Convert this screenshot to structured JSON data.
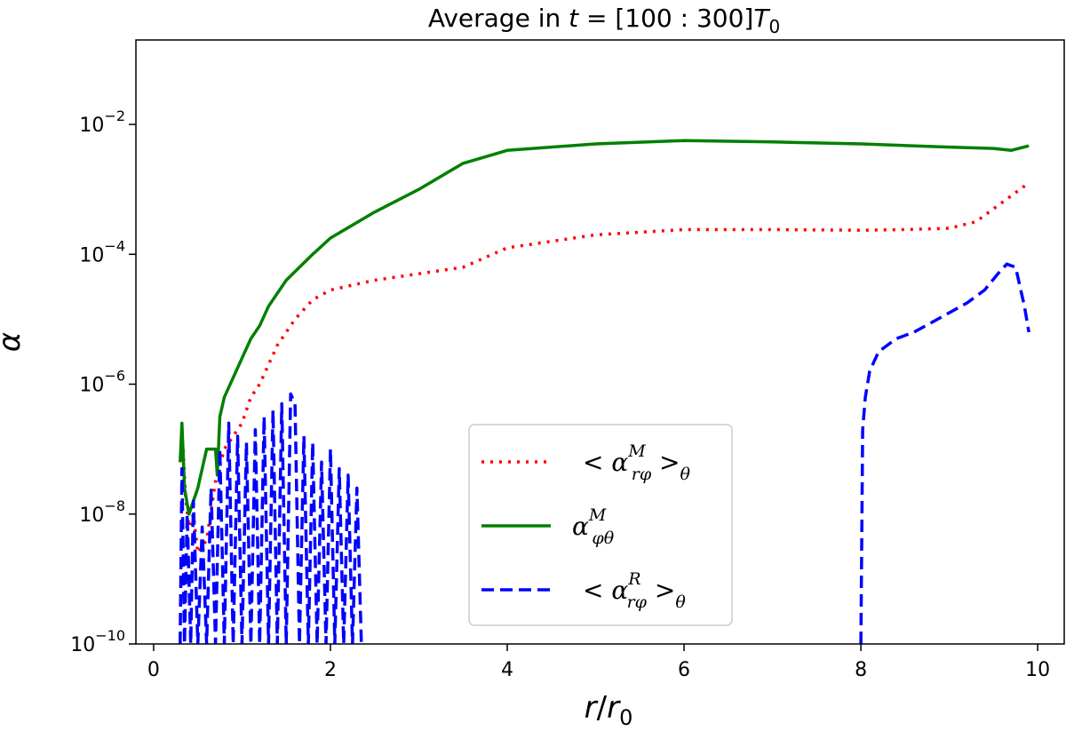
{
  "chart_data": {
    "type": "line",
    "title": "Average in t = [100 : 300]T₀",
    "title_parts": {
      "prefix": "Average in ",
      "var": "t",
      "eq": " = [100 : 300]",
      "T": "T",
      "sub": "0"
    },
    "xlabel": "r/r₀",
    "xlabel_parts": {
      "num": "r",
      "slash": "/",
      "den": "r",
      "sub": "0"
    },
    "ylabel": "α",
    "xlim": [
      -0.2,
      10.3
    ],
    "ylim_log10": [
      -10,
      -0.71
    ],
    "ylim_exponents": [
      -10,
      -0.7
    ],
    "y_scale": "log",
    "x_ticks": [
      0,
      2,
      4,
      6,
      8,
      10
    ],
    "x_tick_labels": [
      "0",
      "2",
      "4",
      "6",
      "8",
      "10"
    ],
    "y_ticks_exp": [
      -10,
      -8,
      -6,
      -4,
      -2
    ],
    "y_tick_labels": [
      {
        "base": "10",
        "exp": "−10"
      },
      {
        "base": "10",
        "exp": "−8"
      },
      {
        "base": "10",
        "exp": "−6"
      },
      {
        "base": "10",
        "exp": "−4"
      },
      {
        "base": "10",
        "exp": "−2"
      }
    ],
    "legend": {
      "placement": "lower-center",
      "entries": [
        {
          "label": "< α^M_rφ >_θ",
          "text_pre": "< α",
          "sup": "M",
          "sub": "rφ",
          "text_post": " >",
          "post_sub": "θ",
          "style": "dotted",
          "color": "#ff0000"
        },
        {
          "label": "α^M_φθ",
          "text_pre": "α",
          "sup": "M",
          "sub": "φθ",
          "text_post": "",
          "post_sub": "",
          "style": "solid",
          "color": "#008000"
        },
        {
          "label": "< α^R_rφ >_θ",
          "text_pre": "< α",
          "sup": "R",
          "sub": "rφ",
          "text_post": " >",
          "post_sub": "θ",
          "style": "dashed",
          "color": "#0000ff"
        }
      ]
    },
    "series": [
      {
        "name": "< α^M_rφ >_θ",
        "style": "dotted",
        "color": "#ff0000",
        "x": [
          0.3,
          0.33,
          0.36,
          0.4,
          0.45,
          0.5,
          0.6,
          0.7,
          0.8,
          0.9,
          1.0,
          1.1,
          1.2,
          1.4,
          1.6,
          1.8,
          2.0,
          2.5,
          3.0,
          3.5,
          4.0,
          5.0,
          6.0,
          7.0,
          8.0,
          8.5,
          9.0,
          9.3,
          9.6,
          9.9
        ],
        "y_exp": [
          -7.2,
          -6.9,
          -7.7,
          -8.2,
          -8.0,
          -8.6,
          -8.4,
          -7.5,
          -7.0,
          -6.8,
          -6.6,
          -6.2,
          -6.0,
          -5.4,
          -5.0,
          -4.7,
          -4.55,
          -4.4,
          -4.3,
          -4.2,
          -3.9,
          -3.7,
          -3.62,
          -3.62,
          -3.63,
          -3.62,
          -3.6,
          -3.5,
          -3.2,
          -2.9
        ]
      },
      {
        "name": "α^M_φθ",
        "style": "solid",
        "color": "#008000",
        "x": [
          0.3,
          0.32,
          0.35,
          0.4,
          0.5,
          0.6,
          0.7,
          0.72,
          0.75,
          0.8,
          0.9,
          1.0,
          1.1,
          1.2,
          1.3,
          1.5,
          1.8,
          2.0,
          2.5,
          3.0,
          3.5,
          4.0,
          5.0,
          6.0,
          7.0,
          8.0,
          9.0,
          9.5,
          9.7,
          9.9
        ],
        "y_exp": [
          -7.2,
          -6.6,
          -7.6,
          -8.0,
          -7.6,
          -7.0,
          -7.0,
          -7.4,
          -6.5,
          -6.2,
          -5.9,
          -5.6,
          -5.3,
          -5.1,
          -4.8,
          -4.4,
          -4.0,
          -3.75,
          -3.35,
          -3.0,
          -2.6,
          -2.4,
          -2.3,
          -2.25,
          -2.27,
          -2.3,
          -2.35,
          -2.37,
          -2.4,
          -2.33
        ]
      },
      {
        "name": "< α^R_rφ >_θ",
        "style": "dashed",
        "color": "#0000ff",
        "segments": [
          {
            "x": [
              0.3,
              0.32,
              0.35,
              0.38,
              0.42,
              0.45,
              0.5,
              0.55,
              0.6,
              0.65,
              0.7,
              0.75,
              0.8,
              0.85,
              0.9,
              0.95,
              1.0,
              1.05,
              1.1,
              1.15,
              1.2,
              1.25,
              1.3,
              1.35,
              1.4,
              1.45,
              1.5,
              1.55,
              1.6,
              1.65,
              1.7,
              1.75,
              1.8,
              1.85,
              1.9,
              1.95,
              2.0,
              2.05,
              2.1,
              2.15,
              2.2,
              2.25,
              2.3,
              2.35
            ],
            "y_exp": [
              -10,
              -7.3,
              -10,
              -8.0,
              -10,
              -7.8,
              -10,
              -8.2,
              -10,
              -7.6,
              -10,
              -7.0,
              -10,
              -6.6,
              -10,
              -6.8,
              -10,
              -6.9,
              -10,
              -6.7,
              -10,
              -6.5,
              -10,
              -6.4,
              -10,
              -6.3,
              -10,
              -6.15,
              -6.3,
              -10,
              -6.8,
              -10,
              -6.9,
              -10,
              -7.2,
              -10,
              -7.0,
              -10,
              -7.3,
              -10,
              -7.4,
              -10,
              -7.6,
              -10
            ]
          },
          {
            "x": [
              8.0,
              8.02,
              8.05,
              8.1,
              8.2,
              8.4,
              8.6,
              8.8,
              9.0,
              9.2,
              9.4,
              9.55,
              9.65,
              9.75,
              9.85,
              9.9
            ],
            "y_exp": [
              -10,
              -6.7,
              -6.2,
              -5.8,
              -5.5,
              -5.3,
              -5.2,
              -5.05,
              -4.9,
              -4.75,
              -4.55,
              -4.3,
              -4.15,
              -4.2,
              -4.8,
              -5.2
            ]
          }
        ]
      }
    ]
  }
}
